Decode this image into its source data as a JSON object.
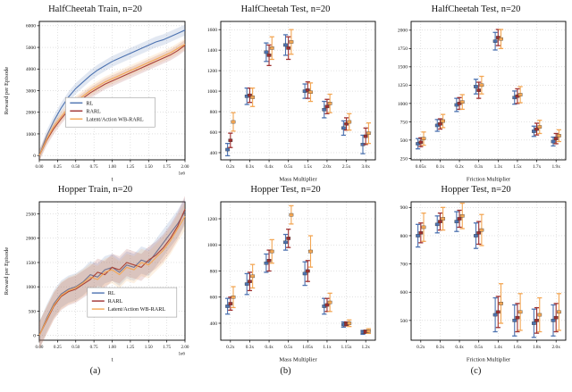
{
  "figure": {
    "captions": [
      "(a)",
      "(b)",
      "(c)"
    ]
  },
  "colors": {
    "rl": "#4c72b0",
    "rarl": "#9e2f2f",
    "wb": "#f3a653"
  },
  "chart_data": [
    {
      "type": "line",
      "title": "HalfCheetah Train, n=20",
      "xlabel": "t",
      "ylabel": "Reward per Episode",
      "x_offset_label": "1e6",
      "xlim": [
        0,
        2
      ],
      "ylim": [
        -200,
        6200
      ],
      "xticks": [
        0,
        0.25,
        0.5,
        0.75,
        1,
        1.25,
        1.5,
        1.75,
        2
      ],
      "xtick_labels": [
        "0.00",
        "0.25",
        "0.50",
        "0.75",
        "1.00",
        "1.25",
        "1.50",
        "1.75",
        "2.00"
      ],
      "yticks": [
        0,
        1000,
        2000,
        3000,
        4000,
        5000,
        6000
      ],
      "x": [
        0,
        0.1,
        0.2,
        0.3,
        0.4,
        0.5,
        0.6,
        0.7,
        0.8,
        0.9,
        1,
        1.1,
        1.2,
        1.3,
        1.4,
        1.5,
        1.6,
        1.7,
        1.8,
        1.9,
        2
      ],
      "legend": {
        "x": 0.18,
        "y": 0.55,
        "w": 100
      },
      "series": [
        {
          "name": "RL",
          "color": "#4c72b0",
          "band": 250,
          "values": [
            0,
            900,
            1600,
            2200,
            2700,
            3100,
            3400,
            3700,
            3950,
            4150,
            4350,
            4500,
            4650,
            4800,
            4950,
            5100,
            5250,
            5350,
            5500,
            5650,
            5800
          ]
        },
        {
          "name": "RARL",
          "color": "#9e2f2f",
          "band": 250,
          "values": [
            0,
            700,
            1250,
            1700,
            2100,
            2400,
            2650,
            2900,
            3100,
            3300,
            3450,
            3600,
            3750,
            3900,
            4050,
            4200,
            4350,
            4500,
            4650,
            4850,
            5100
          ]
        },
        {
          "name": "Latent/Action WB-RARL",
          "color": "#f3a653",
          "band": 250,
          "values": [
            0,
            750,
            1350,
            1800,
            2200,
            2500,
            2750,
            3000,
            3200,
            3400,
            3550,
            3700,
            3850,
            4000,
            4150,
            4300,
            4450,
            4600,
            4750,
            4950,
            5150
          ]
        }
      ]
    },
    {
      "type": "errorbar",
      "title": "HalfCheetah Test, n=20",
      "xlabel": "Mass Multiplier",
      "ylabel": null,
      "ylim": [
        330,
        1680
      ],
      "yticks": [
        400,
        600,
        800,
        1000,
        1200,
        1400,
        1600
      ],
      "categories": [
        "0.2x",
        "0.3x",
        "0.4x",
        "0.5x",
        "1.5x",
        "2.0x",
        "2.5x",
        "3.0x"
      ],
      "series": [
        {
          "name": "RL",
          "color": "#4c72b0",
          "values": [
            430,
            950,
            1380,
            1450,
            1000,
            820,
            640,
            480
          ],
          "errors": [
            60,
            80,
            90,
            100,
            70,
            80,
            70,
            90
          ]
        },
        {
          "name": "RARL",
          "color": "#9e2f2f",
          "values": [
            520,
            960,
            1350,
            1420,
            1010,
            850,
            680,
            560
          ],
          "errors": [
            70,
            70,
            100,
            110,
            80,
            70,
            60,
            80
          ]
        },
        {
          "name": "Latent/Action WB-RARL",
          "color": "#f3a653",
          "values": [
            700,
            940,
            1420,
            1480,
            990,
            880,
            700,
            590
          ],
          "errors": [
            90,
            90,
            110,
            120,
            90,
            90,
            80,
            100
          ]
        }
      ]
    },
    {
      "type": "errorbar",
      "title": "HalfCheetah Test, n=20",
      "xlabel": "Friction Multiplier",
      "ylabel": null,
      "ylim": [
        230,
        2120
      ],
      "yticks": [
        250,
        500,
        750,
        1000,
        1250,
        1500,
        1750,
        2000
      ],
      "categories": [
        "0.05x",
        "0.1x",
        "0.2x",
        "0.3x",
        "1.3x",
        "1.5x",
        "1.7x",
        "1.9x"
      ],
      "series": [
        {
          "name": "RL",
          "color": "#4c72b0",
          "values": [
            450,
            700,
            980,
            1230,
            1850,
            1080,
            620,
            480
          ],
          "errors": [
            70,
            80,
            90,
            100,
            120,
            90,
            70,
            60
          ]
        },
        {
          "name": "RARL",
          "color": "#9e2f2f",
          "values": [
            470,
            720,
            1000,
            1180,
            1900,
            1100,
            650,
            520
          ],
          "errors": [
            60,
            70,
            80,
            110,
            110,
            100,
            80,
            70
          ]
        },
        {
          "name": "Latent/Action WB-RARL",
          "color": "#f3a653",
          "values": [
            520,
            760,
            1020,
            1250,
            1880,
            1120,
            680,
            560
          ],
          "errors": [
            90,
            90,
            100,
            120,
            130,
            110,
            90,
            80
          ]
        }
      ]
    },
    {
      "type": "line",
      "title": "Hopper Train, n=20",
      "xlabel": "t",
      "ylabel": "Reward per Episode",
      "x_offset_label": "1e6",
      "xlim": [
        0,
        2
      ],
      "ylim": [
        -100,
        2750
      ],
      "xticks": [
        0,
        0.25,
        0.5,
        0.75,
        1,
        1.25,
        1.5,
        1.75,
        2
      ],
      "xtick_labels": [
        "0.00",
        "0.25",
        "0.50",
        "0.75",
        "1.00",
        "1.25",
        "1.50",
        "1.75",
        "2.00"
      ],
      "yticks": [
        0,
        500,
        1000,
        1500,
        2000,
        2500
      ],
      "x": [
        0,
        0.1,
        0.2,
        0.3,
        0.4,
        0.5,
        0.6,
        0.7,
        0.8,
        0.9,
        1,
        1.1,
        1.2,
        1.3,
        1.4,
        1.5,
        1.6,
        1.7,
        1.8,
        1.9,
        2
      ],
      "legend": {
        "x": 0.33,
        "y": 0.62,
        "w": 100
      },
      "series": [
        {
          "name": "RL",
          "color": "#4c72b0",
          "band": 280,
          "values": [
            0,
            350,
            650,
            850,
            950,
            1000,
            1100,
            1250,
            1200,
            1350,
            1400,
            1300,
            1450,
            1400,
            1550,
            1500,
            1700,
            1900,
            2100,
            2300,
            2550
          ]
        },
        {
          "name": "RARL",
          "color": "#9e2f2f",
          "band": 280,
          "values": [
            0,
            300,
            600,
            800,
            900,
            950,
            1050,
            1150,
            1300,
            1250,
            1400,
            1350,
            1500,
            1450,
            1400,
            1550,
            1650,
            1800,
            2000,
            2250,
            2600
          ]
        },
        {
          "name": "Latent/Action WB-RARL",
          "color": "#f3a653",
          "band": 280,
          "values": [
            0,
            320,
            620,
            820,
            920,
            980,
            1080,
            1200,
            1150,
            1300,
            1350,
            1250,
            1400,
            1350,
            1500,
            1450,
            1600,
            1750,
            1950,
            2200,
            2450
          ]
        }
      ]
    },
    {
      "type": "errorbar",
      "title": "Hopper Test, n=20",
      "xlabel": "Mass Multiplier",
      "ylabel": null,
      "ylim": [
        270,
        1330
      ],
      "yticks": [
        400,
        600,
        800,
        1000,
        1200
      ],
      "categories": [
        "0.2x",
        "0.3x",
        "0.4x",
        "0.5x",
        "1.05x",
        "1.1x",
        "1.15x",
        "1.2x"
      ],
      "series": [
        {
          "name": "RL",
          "color": "#4c72b0",
          "values": [
            530,
            700,
            860,
            1020,
            780,
            530,
            390,
            330
          ],
          "errors": [
            60,
            80,
            70,
            60,
            90,
            60,
            20,
            15
          ]
        },
        {
          "name": "RARL",
          "color": "#9e2f2f",
          "values": [
            550,
            720,
            880,
            1050,
            800,
            540,
            395,
            335
          ],
          "errors": [
            50,
            70,
            80,
            70,
            80,
            50,
            15,
            12
          ]
        },
        {
          "name": "Latent/Action WB-RARL",
          "color": "#f3a653",
          "values": [
            600,
            760,
            950,
            1230,
            950,
            560,
            400,
            340
          ],
          "errors": [
            80,
            90,
            90,
            70,
            120,
            70,
            25,
            18
          ]
        }
      ]
    },
    {
      "type": "errorbar",
      "title": "Hopper Test, n=20",
      "xlabel": "Friction Multiplier",
      "ylabel": null,
      "ylim": [
        430,
        920
      ],
      "yticks": [
        500,
        600,
        700,
        800,
        900
      ],
      "categories": [
        "0.2x",
        "0.3x",
        "0.4x",
        "0.5x",
        "1.4x",
        "1.6x",
        "1.8x",
        "2.0x"
      ],
      "series": [
        {
          "name": "RL",
          "color": "#4c72b0",
          "values": [
            800,
            840,
            850,
            800,
            520,
            500,
            490,
            500
          ],
          "errors": [
            40,
            30,
            35,
            45,
            60,
            55,
            50,
            55
          ]
        },
        {
          "name": "RARL",
          "color": "#9e2f2f",
          "values": [
            810,
            850,
            860,
            810,
            530,
            510,
            500,
            510
          ],
          "errors": [
            35,
            30,
            30,
            40,
            55,
            50,
            45,
            50
          ]
        },
        {
          "name": "Latent/Action WB-RARL",
          "color": "#f3a653",
          "values": [
            830,
            860,
            870,
            820,
            560,
            530,
            520,
            530
          ],
          "errors": [
            50,
            40,
            45,
            55,
            70,
            65,
            60,
            65
          ]
        }
      ]
    }
  ]
}
